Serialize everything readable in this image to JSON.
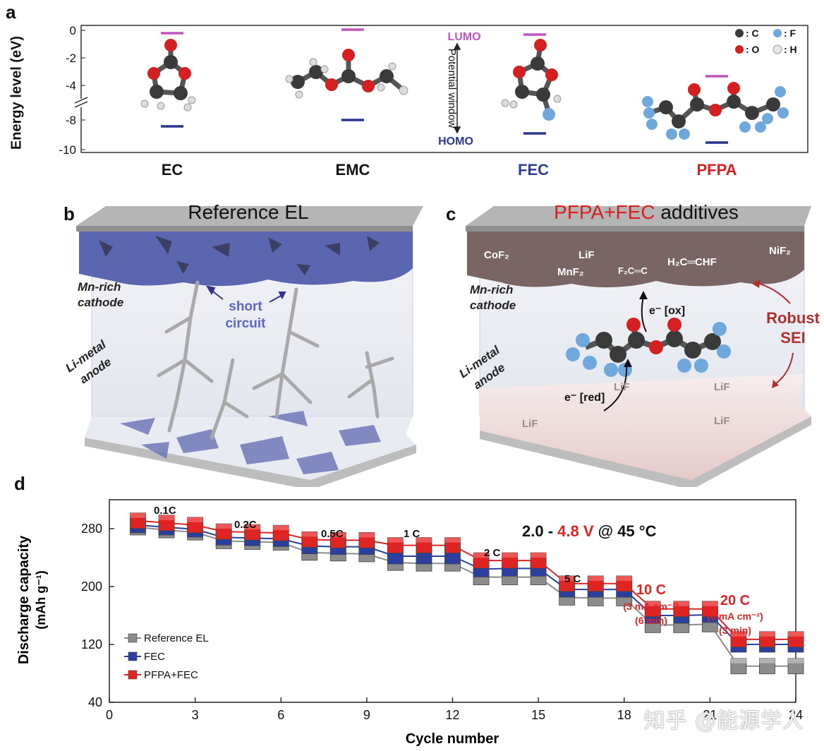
{
  "panel_a": {
    "label": "a",
    "ylabel": "Energy level (eV)",
    "yticks": [
      "0",
      "-2",
      "-4",
      "-8",
      "-10"
    ],
    "lumo_label": "LUMO",
    "homo_label": "HOMO",
    "window_label": "Potential window",
    "molecules": [
      {
        "name": "EC",
        "color": "#111111"
      },
      {
        "name": "EMC",
        "color": "#111111"
      },
      {
        "name": "FEC",
        "color": "#2b3f9e"
      },
      {
        "name": "PFPA",
        "color": "#d92020"
      }
    ],
    "legend": [
      {
        "symbol": "C",
        "label": ": C",
        "color": "#333333"
      },
      {
        "symbol": "F",
        "label": ": F",
        "color": "#6fa8dc"
      },
      {
        "symbol": "O",
        "label": ": O",
        "color": "#d42020"
      },
      {
        "symbol": "H",
        "label": ": H",
        "color": "#e6e6e6"
      }
    ],
    "colors": {
      "lumo": "#c154c1",
      "homo": "#2b3590"
    }
  },
  "panel_b": {
    "label": "b",
    "title": "Reference EL",
    "cathode": [
      "Mn-rich",
      "cathode"
    ],
    "anode": [
      "Li-metal",
      "anode"
    ],
    "short_circuit": [
      "short",
      "circuit"
    ]
  },
  "panel_c": {
    "label": "c",
    "title_red": "PFPA+FEC",
    "title_black": " additives",
    "cathode": [
      "Mn-rich",
      "cathode"
    ],
    "anode": [
      "Li-metal",
      "anode"
    ],
    "sei": [
      "Robust",
      "SEI"
    ],
    "ox_label": "e⁻ [ox]",
    "red_label": "e⁻ [red]",
    "cathode_species": [
      "CoF₂",
      "LiF",
      "MnF₂",
      "F₂C═C",
      "H₂C═CHF",
      "NiF₂"
    ],
    "anode_species": [
      "LiF",
      "LiF",
      "LiF",
      "LiF"
    ]
  },
  "panel_d": {
    "label": "d",
    "condition_black1": "2.0 - ",
    "condition_red": "4.8 V",
    "condition_black2": " @ 45 °C",
    "rate_labels": [
      "0.1C",
      "0.2C",
      "0.5C",
      "1 C",
      "2 C",
      "5 C"
    ],
    "rate_10c": [
      "10 C",
      "(3 mA cm⁻²)",
      "(6 min)"
    ],
    "rate_20c": [
      "20 C",
      "(6 mA cm⁻²)",
      "(3 min)"
    ],
    "ylabel_line1": "Discharge capacity",
    "ylabel_line2": "(mAh g⁻¹)",
    "xlabel": "Cycle number"
  },
  "chart_data": {
    "type": "line",
    "xlabel": "Cycle number",
    "ylabel": "Discharge capacity (mAh g⁻¹)",
    "xlim": [
      0,
      24
    ],
    "ylim": [
      40,
      320
    ],
    "xticks": [
      0,
      3,
      6,
      9,
      12,
      15,
      18,
      21,
      24
    ],
    "yticks": [
      40,
      120,
      200,
      280
    ],
    "grid": false,
    "legend_position": "bottom-left",
    "x": [
      1,
      2,
      3,
      4,
      5,
      6,
      7,
      8,
      9,
      10,
      11,
      12,
      13,
      14,
      15,
      16,
      17,
      18,
      19,
      20,
      21,
      22,
      23,
      24
    ],
    "series": [
      {
        "name": "Reference EL",
        "color": "#8c8c8c",
        "values": [
          282,
          278,
          275,
          263,
          262,
          261,
          247,
          246,
          245,
          233,
          232,
          232,
          213,
          213,
          213,
          185,
          184,
          184,
          147,
          147,
          148,
          90,
          90,
          90
        ]
      },
      {
        "name": "FEC",
        "color": "#2b3f9e",
        "values": [
          285,
          282,
          279,
          268,
          267,
          266,
          256,
          255,
          255,
          242,
          242,
          242,
          224,
          225,
          225,
          196,
          196,
          196,
          160,
          160,
          161,
          120,
          120,
          120
        ]
      },
      {
        "name": "PFPA+FEC",
        "color": "#e02424",
        "values": [
          291,
          288,
          285,
          276,
          275,
          274,
          265,
          264,
          264,
          257,
          257,
          257,
          236,
          236,
          236,
          204,
          204,
          204,
          169,
          169,
          169,
          127,
          127,
          127
        ]
      }
    ]
  },
  "watermark": "知乎 @能源学人"
}
